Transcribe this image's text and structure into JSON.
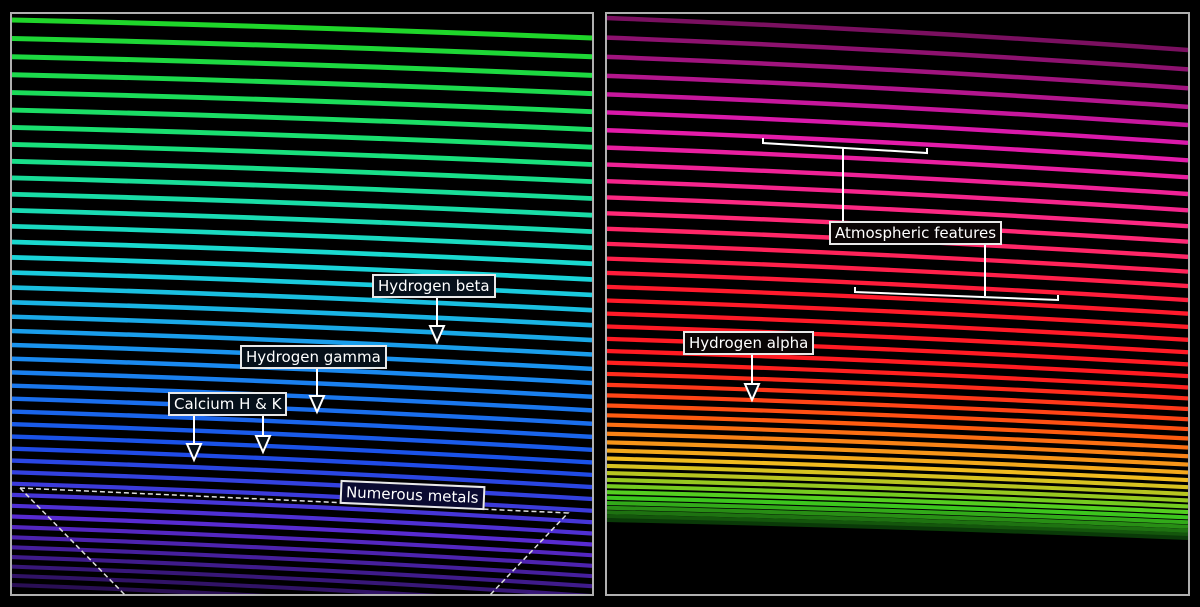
{
  "left_panel": {
    "labels": {
      "hydrogen_beta": "Hydrogen beta",
      "hydrogen_gamma": "Hydrogen gamma",
      "calcium_hk": "Calcium H & K",
      "numerous_metals": "Numerous metals"
    },
    "color_stops": [
      "#1fd62a",
      "#19e07a",
      "#1ad8d8",
      "#1a8ef0",
      "#1a4fe8",
      "#5a2ad0",
      "#2a0f55"
    ]
  },
  "right_panel": {
    "labels": {
      "atmospheric_features": "Atmospheric features",
      "hydrogen_alpha": "Hydrogen alpha"
    },
    "color_stops": [
      "#7a1060",
      "#e01ab0",
      "#ff2a7a",
      "#ff1a2a",
      "#ff1a20",
      "#ff5a10",
      "#f0c020",
      "#40d020",
      "#0a3a08"
    ]
  },
  "frame_color": "#b0b0b0"
}
